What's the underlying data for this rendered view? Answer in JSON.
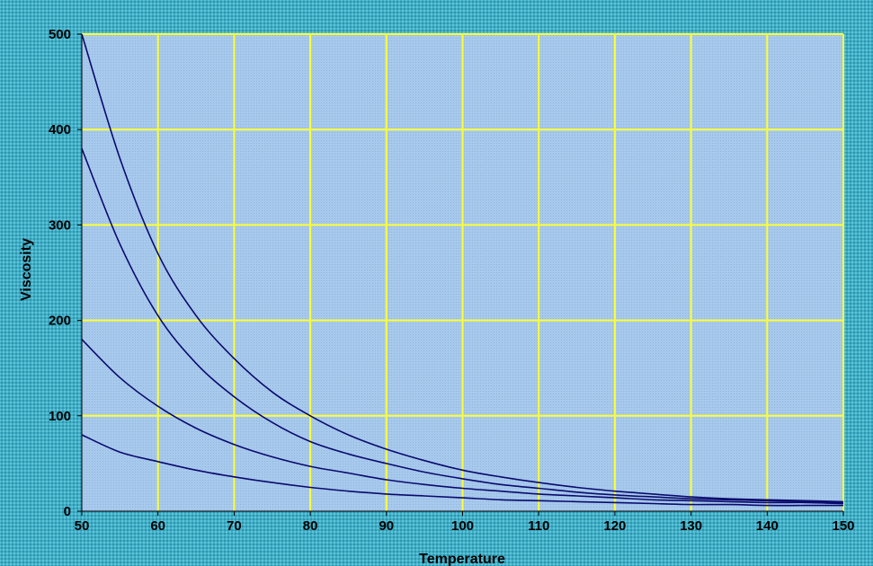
{
  "chart_data": {
    "type": "line",
    "xlabel": "Temperature",
    "ylabel": "Viscosity",
    "xlim": [
      50,
      150
    ],
    "ylim": [
      0,
      500
    ],
    "x_ticks": [
      50,
      60,
      70,
      80,
      90,
      100,
      110,
      120,
      130,
      140,
      150
    ],
    "y_ticks": [
      0,
      100,
      200,
      300,
      400,
      500
    ],
    "grid": true,
    "legend": "none",
    "x": [
      50,
      55,
      60,
      65,
      70,
      75,
      80,
      85,
      90,
      95,
      100,
      105,
      110,
      115,
      120,
      125,
      130,
      135,
      140,
      145,
      150
    ],
    "series": [
      {
        "values": [
          500,
          370,
          270,
          205,
          160,
          125,
          100,
          80,
          65,
          53,
          43,
          36,
          30,
          25,
          21,
          18,
          15,
          13,
          12,
          11,
          10
        ]
      },
      {
        "values": [
          380,
          280,
          205,
          155,
          120,
          93,
          73,
          60,
          50,
          41,
          34,
          28,
          24,
          20,
          17,
          15,
          13,
          12,
          11,
          10,
          9
        ]
      },
      {
        "values": [
          180,
          140,
          110,
          87,
          70,
          57,
          47,
          40,
          33,
          28,
          24,
          21,
          18,
          16,
          14,
          12,
          11,
          10,
          9,
          9,
          8
        ]
      },
      {
        "values": [
          80,
          62,
          52,
          43,
          36,
          30,
          25,
          21,
          18,
          16,
          14,
          12,
          11,
          10,
          9,
          8,
          7,
          7,
          6,
          6,
          6
        ]
      }
    ],
    "colors": {
      "plot_background": "#a4c6ea",
      "grid": "#ffff33",
      "line": "#0a0a6e",
      "axis": "#000000"
    }
  }
}
